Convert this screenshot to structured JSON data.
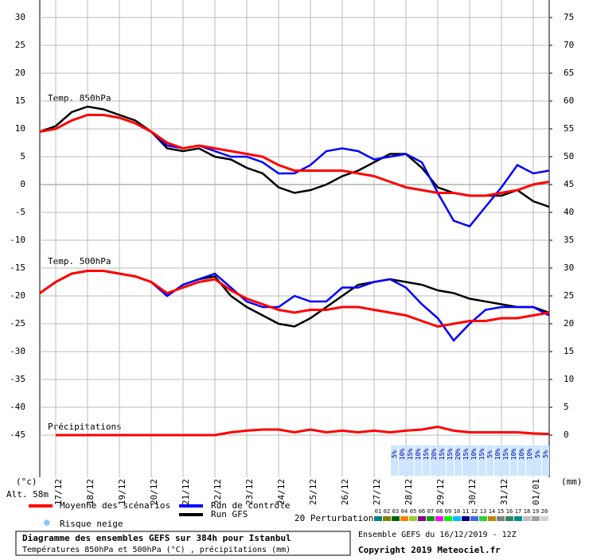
{
  "chart_data": {
    "type": "line",
    "x": [
      0,
      12,
      24,
      36,
      48,
      60,
      72,
      84,
      96,
      108,
      120,
      132,
      144,
      156,
      168,
      180,
      192,
      204,
      216,
      228,
      240,
      252,
      264,
      276,
      288,
      300,
      312,
      324,
      336,
      348,
      360,
      372,
      384
    ],
    "xlim": [
      0,
      384
    ],
    "xticks": [
      {
        "value": 12,
        "label": "17/12"
      },
      {
        "value": 36,
        "label": "18/12"
      },
      {
        "value": 60,
        "label": "19/12"
      },
      {
        "value": 84,
        "label": "20/12"
      },
      {
        "value": 108,
        "label": "21/12"
      },
      {
        "value": 132,
        "label": "22/12"
      },
      {
        "value": 156,
        "label": "23/12"
      },
      {
        "value": 180,
        "label": "24/12"
      },
      {
        "value": 204,
        "label": "25/12"
      },
      {
        "value": 228,
        "label": "26/12"
      },
      {
        "value": 252,
        "label": "27/12"
      },
      {
        "value": 276,
        "label": "28/12"
      },
      {
        "value": 300,
        "label": "29/12"
      },
      {
        "value": 324,
        "label": "30/12"
      },
      {
        "value": 348,
        "label": "31/12"
      },
      {
        "value": 372,
        "label": "01/01"
      }
    ],
    "ylim": [
      -52.5,
      30
    ],
    "yticks": [
      30,
      25,
      20,
      15,
      10,
      5,
      0,
      -5,
      -10,
      -15,
      -20,
      -25,
      -30,
      -35,
      -40,
      -45
    ],
    "y2lim": [
      -7.5,
      75
    ],
    "y2ticks": [
      75,
      70,
      65,
      60,
      55,
      50,
      45,
      40,
      35,
      30,
      25,
      20,
      15,
      10,
      5,
      0
    ],
    "grid": true,
    "ylabel": "(°c)",
    "y2label": "(mm)",
    "altitude": "Alt. 58m",
    "annotations": [
      "Temp. 850hPa",
      "Temp. 500hPa",
      "Précipitations"
    ],
    "series": [
      {
        "name": "Moyenne des scénarios",
        "color": "#ff0000",
        "values": [
          9.5,
          10,
          11.5,
          12.5,
          12.5,
          12,
          11,
          9.5,
          7.5,
          6.5,
          7,
          6.5,
          6,
          5.5,
          5,
          3.5,
          2.5,
          2.5,
          2.5,
          2.5,
          2,
          1.5,
          0.5,
          -0.5,
          -1,
          -1.5,
          -1.5,
          -2,
          -2,
          -1.5,
          -1,
          0,
          0.5
        ],
        "values_500": [
          -19.5,
          -17.5,
          -16,
          -15.5,
          -15.5,
          -16,
          -16.5,
          -17.5,
          -19.5,
          -18.5,
          -17.5,
          -17,
          -19,
          -20.5,
          -21.5,
          -22.5,
          -23,
          -22.5,
          -22.5,
          -22,
          -22,
          -22.5,
          -23,
          -23.5,
          -24.5,
          -25.5,
          -25,
          -24.5,
          -24.5,
          -24,
          -24,
          -23.5,
          -23
        ],
        "precip": [
          null,
          0,
          0,
          0,
          0,
          0,
          0,
          0,
          0,
          0,
          0,
          0,
          0.5,
          0.8,
          1,
          1,
          0.5,
          1,
          0.5,
          0.8,
          0.5,
          0.8,
          0.5,
          0.8,
          1,
          1.5,
          0.8,
          0.5,
          0.5,
          0.5,
          0.5,
          0.3,
          0.2
        ]
      },
      {
        "name": "Run de contrôle",
        "color": "#0000ff",
        "values": [
          9.5,
          10,
          11.5,
          12.5,
          12.5,
          12,
          11,
          9.5,
          7,
          6.5,
          7,
          6,
          5,
          5,
          4,
          2,
          2,
          3.5,
          6,
          6.5,
          6,
          4.5,
          5,
          5.5,
          4,
          -1.5,
          -6.5,
          -7.5,
          -4,
          -0.5,
          3.5,
          2,
          2.5
        ],
        "values_500": [
          -19.5,
          -17.5,
          -16,
          -15.5,
          -15.5,
          -16,
          -16.5,
          -17.5,
          -20,
          -18,
          -17,
          -16,
          -18.5,
          -21,
          -22,
          -22,
          -20,
          -21,
          -21,
          -18.5,
          -18.5,
          -17.5,
          -17,
          -18.5,
          -21.5,
          -24,
          -28,
          -25,
          -22.5,
          -22,
          -22,
          -22,
          -23.5
        ]
      },
      {
        "name": "Run GFS",
        "color": "#000000",
        "values": [
          9.5,
          10.5,
          13,
          14,
          13.5,
          12.5,
          11.5,
          9.5,
          6.5,
          6,
          6.5,
          5,
          4.5,
          3,
          2,
          -0.5,
          -1.5,
          -1,
          0,
          1.5,
          2.5,
          4,
          5.5,
          5.5,
          3,
          -0.5,
          -1.5,
          -2,
          -2,
          -2,
          -1,
          -3,
          -4
        ],
        "values_500": [
          -19.5,
          -17.5,
          -16,
          -15.5,
          -15.5,
          -16,
          -16.5,
          -17.5,
          -20,
          -18,
          -17,
          -16.5,
          -20,
          -22,
          -23.5,
          -25,
          -25.5,
          -24,
          -22,
          -20,
          -18,
          -17.5,
          -17,
          -17.5,
          -18,
          -19,
          -19.5,
          -20.5,
          -21,
          -21.5,
          -22,
          -22,
          -23
        ]
      }
    ],
    "snow_risk": {
      "label": "Risque neige",
      "x": [
        270,
        276,
        282,
        288,
        294,
        300,
        306,
        312,
        318,
        324,
        330,
        336,
        342,
        348,
        354,
        360,
        366,
        372,
        378,
        384
      ],
      "values": [
        5,
        10,
        15,
        10,
        15,
        20,
        15,
        15,
        20,
        15,
        10,
        15,
        5,
        10,
        15,
        10,
        10,
        10,
        5,
        5
      ],
      "value_labels": [
        "5%",
        "10%",
        "15%",
        "10%",
        "15%",
        "20%",
        "15%",
        "15%",
        "20%",
        "15%",
        "10%",
        "15%",
        "5%",
        "10%",
        "15%",
        "10%",
        "10%",
        "10%",
        "5%",
        "5%"
      ]
    },
    "perturbations": {
      "label": "20 Perturbations",
      "members": [
        {
          "name": "01",
          "color": "#008080"
        },
        {
          "name": "02",
          "color": "#808000"
        },
        {
          "name": "03",
          "color": "#006400"
        },
        {
          "name": "04",
          "color": "#ff8000"
        },
        {
          "name": "05",
          "color": "#9acd32"
        },
        {
          "name": "06",
          "color": "#800080"
        },
        {
          "name": "07",
          "color": "#00a000"
        },
        {
          "name": "08",
          "color": "#ff00ff"
        },
        {
          "name": "09",
          "color": "#00ff00"
        },
        {
          "name": "10",
          "color": "#00bfff"
        },
        {
          "name": "11",
          "color": "#000080"
        },
        {
          "name": "12",
          "color": "#4169e1"
        },
        {
          "name": "13",
          "color": "#32cd32"
        },
        {
          "name": "14",
          "color": "#b8860b"
        },
        {
          "name": "15",
          "color": "#808080"
        },
        {
          "name": "16",
          "color": "#2e8b57"
        },
        {
          "name": "17",
          "color": "#008b8b"
        },
        {
          "name": "18",
          "color": "#c0c0c0"
        },
        {
          "name": "19",
          "color": "#a0a0a0"
        },
        {
          "name": "20",
          "color": "#d3d3d3"
        }
      ]
    },
    "title": "Diagramme des ensembles GEFS sur 384h pour Istanbul",
    "subtitle": "Températures 850hPa et 500hPa (°C) , précipitations (mm)",
    "run": "Ensemble GEFS du 16/12/2019 - 12Z",
    "copyright": "Copyright 2019 Meteociel.fr"
  }
}
